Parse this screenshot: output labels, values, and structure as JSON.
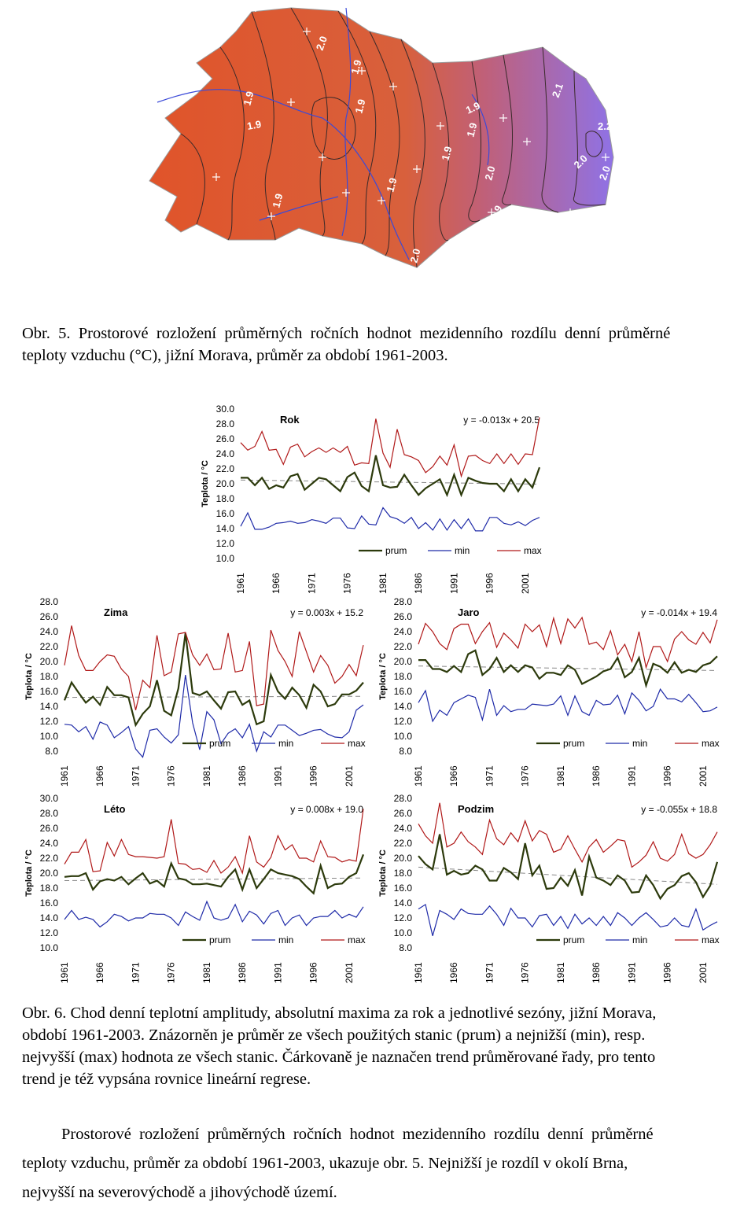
{
  "map": {
    "contour_labels": [
      "2.0",
      "1.9",
      "1.9",
      "1.9",
      "1.9",
      "1.9",
      "2.1",
      "1.9",
      "2.2",
      "1.9",
      "1.9",
      "2.0",
      "2.0",
      "2.1",
      "2.0",
      "1.9",
      "2.0",
      "1.9",
      "2.0"
    ],
    "colors": {
      "warm": "#e0542a",
      "mid": "#d8603c",
      "cool": "#8f72e6",
      "contour": "#3a2a2a",
      "river": "#3b4ad8",
      "border": "#b8b8c8",
      "station": "#ffffff"
    }
  },
  "caption5": {
    "line1": "Obr.  5.  Prostorové  rozložení  průměrných  ročních  hodnot  mezidenního  rozdílu  denní  průměrné",
    "line2": "teploty vzduchu (°C), jižní Morava, průměr za období 1961-2003."
  },
  "caption6": {
    "line1": "Obr. 6. Chod denní teplotní amplitudy, absolutní maxima za rok a jednotlivé sezóny, jižní Morava,",
    "line2": "období 1961-2003. Znázorněn je průměr ze všech použitých stanic (prum) a nejnižší (min), resp.",
    "line3": "nejvyšší (max) hodnota ze všech stanic. Čárkovaně je naznačen trend průměrované řady, pro tento",
    "line4": "trend je též vypsána rovnice lineární regrese."
  },
  "body_text": {
    "line1": "Prostorové  rozložení  průměrných  ročních  hodnot  mezidenního  rozdílu  denní  průměrné",
    "line2": "teploty vzduchu, průměr za období 1961-2003, ukazuje obr. 5. Nejnižší je rozdíl v okolí Brna,",
    "line3": "nejvyšší na severovýchodě a jihovýchodě území."
  },
  "chart_data": [
    {
      "type": "line",
      "title": "Rok",
      "ylabel": "Teplota / °C",
      "equation": "y = -0.013x + 20.5",
      "ylim": [
        10,
        30
      ],
      "yticks": [
        "30.0",
        "28.0",
        "26.0",
        "24.0",
        "22.0",
        "20.0",
        "18.0",
        "16.0",
        "14.0",
        "12.0",
        "10.0"
      ],
      "xticks": [
        "1961",
        "1966",
        "1971",
        "1976",
        "1981",
        "1986",
        "1991",
        "1996",
        "2001"
      ],
      "legend": [
        "prum",
        "min",
        "max"
      ],
      "trend": [
        20.5,
        19.95
      ],
      "series": [
        {
          "name": "prum",
          "color": "#2c3a0c",
          "values": [
            20.8,
            20.8,
            19.8,
            20.8,
            19.3,
            19.8,
            19.5,
            21.0,
            21.3,
            19.2,
            20.0,
            20.8,
            20.6,
            19.8,
            19.0,
            20.9,
            21.5,
            19.7,
            19.0,
            23.8,
            19.8,
            19.5,
            19.6,
            21.2,
            19.8,
            18.5,
            19.4,
            20.0,
            20.6,
            18.5,
            21.2,
            18.5,
            20.8,
            20.4,
            20.1,
            20.0,
            20.0,
            19.0,
            20.6,
            19.0,
            20.6,
            19.5,
            22.2
          ]
        },
        {
          "name": "min",
          "color": "#1e2aa8",
          "values": [
            14.3,
            16.1,
            13.9,
            13.9,
            14.2,
            14.7,
            14.8,
            15.0,
            14.7,
            14.8,
            15.2,
            15.0,
            14.7,
            15.4,
            15.4,
            14.1,
            14.0,
            15.7,
            14.6,
            14.5,
            16.8,
            15.6,
            15.3,
            14.7,
            15.5,
            14.0,
            14.8,
            13.8,
            15.3,
            13.8,
            15.2,
            14.0,
            15.3,
            13.7,
            13.7,
            15.5,
            15.5,
            14.7,
            14.5,
            14.9,
            14.4,
            15.1,
            15.5
          ]
        },
        {
          "name": "max",
          "color": "#b01818",
          "values": [
            25.5,
            24.5,
            25.0,
            27.0,
            24.5,
            24.6,
            22.6,
            24.9,
            25.3,
            23.6,
            24.3,
            24.8,
            24.2,
            24.8,
            24.2,
            25.0,
            22.5,
            22.8,
            22.7,
            28.7,
            24.1,
            22.2,
            27.3,
            23.9,
            23.6,
            23.1,
            21.5,
            22.3,
            23.7,
            22.5,
            25.2,
            21.0,
            23.7,
            23.8,
            23.1,
            22.7,
            24.0,
            22.7,
            24.0,
            22.6,
            24.0,
            23.9,
            28.9
          ]
        }
      ]
    },
    {
      "type": "line",
      "title": "Zima",
      "ylabel": "Teplota / °C",
      "equation": "y = 0.003x + 15.2",
      "ylim": [
        8,
        28
      ],
      "yticks": [
        "28.0",
        "26.0",
        "24.0",
        "22.0",
        "20.0",
        "18.0",
        "16.0",
        "14.0",
        "12.0",
        "10.0",
        "8.0"
      ],
      "xticks": [
        "1961",
        "1966",
        "1971",
        "1976",
        "1981",
        "1986",
        "1991",
        "1996",
        "2001"
      ],
      "legend": [
        "prum",
        "min",
        "max"
      ],
      "trend": [
        15.2,
        15.35
      ],
      "series": [
        {
          "name": "prum",
          "color": "#2c3a0c",
          "values": [
            14.8,
            17.2,
            15.8,
            14.5,
            15.3,
            14.2,
            16.6,
            15.5,
            15.5,
            15.2,
            11.5,
            13.0,
            14.0,
            17.5,
            13.4,
            12.8,
            16.4,
            23.8,
            15.8,
            15.5,
            16.0,
            14.8,
            13.7,
            15.9,
            16.0,
            14.2,
            14.8,
            11.6,
            12.0,
            18.2,
            16.0,
            15.0,
            16.5,
            15.5,
            13.8,
            16.9,
            16.0,
            14.0,
            14.3,
            15.6,
            15.6,
            16.1,
            17.2
          ]
        },
        {
          "name": "min",
          "color": "#1e2aa8",
          "values": [
            11.6,
            11.5,
            10.6,
            11.3,
            9.6,
            11.9,
            11.5,
            9.8,
            10.5,
            11.3,
            8.3,
            7.2,
            10.8,
            11.0,
            9.9,
            9.1,
            10.2,
            18.2,
            11.8,
            8.2,
            13.3,
            12.2,
            9.0,
            10.4,
            11.0,
            9.8,
            11.6,
            8.0,
            10.6,
            9.9,
            11.5,
            11.5,
            10.8,
            10.1,
            10.4,
            10.8,
            10.9,
            10.3,
            9.9,
            9.8,
            10.6,
            13.5,
            14.2
          ]
        },
        {
          "name": "max",
          "color": "#b01818",
          "values": [
            19.5,
            24.8,
            20.8,
            18.8,
            18.8,
            20.0,
            20.9,
            20.7,
            19.0,
            18.0,
            13.5,
            17.5,
            16.5,
            23.5,
            18.1,
            18.6,
            23.7,
            23.9,
            20.9,
            19.5,
            21.0,
            18.9,
            19.0,
            23.8,
            18.6,
            18.8,
            22.7,
            14.1,
            14.3,
            24.2,
            21.5,
            20.0,
            18.0,
            24.0,
            21.3,
            18.6,
            20.8,
            19.5,
            17.1,
            18.0,
            19.6,
            18.1,
            22.2
          ]
        }
      ]
    },
    {
      "type": "line",
      "title": "Jaro",
      "ylabel": "Teplota / °C",
      "equation": "y = -0.014x + 19.4",
      "ylim": [
        8,
        28
      ],
      "yticks": [
        "28.0",
        "26.0",
        "24.0",
        "22.0",
        "20.0",
        "18.0",
        "16.0",
        "14.0",
        "12.0",
        "10.0",
        "8.0"
      ],
      "xticks": [
        "1961",
        "1966",
        "1971",
        "1976",
        "1981",
        "1986",
        "1991",
        "1996",
        "2001"
      ],
      "legend": [
        "prum",
        "min",
        "max"
      ],
      "trend": [
        19.4,
        18.8
      ],
      "series": [
        {
          "name": "prum",
          "color": "#2c3a0c",
          "values": [
            20.2,
            20.2,
            19.0,
            19.0,
            18.6,
            19.4,
            18.6,
            21.0,
            21.5,
            18.2,
            19.0,
            20.5,
            18.6,
            19.5,
            18.6,
            19.5,
            19.2,
            17.7,
            18.5,
            18.5,
            18.2,
            19.5,
            18.9,
            17.0,
            17.5,
            18.0,
            18.7,
            19.0,
            20.5,
            17.9,
            18.6,
            20.5,
            16.8,
            19.7,
            19.3,
            18.5,
            19.9,
            18.5,
            18.9,
            18.6,
            19.5,
            19.8,
            20.7
          ]
        },
        {
          "name": "min",
          "color": "#1e2aa8",
          "values": [
            14.5,
            16.1,
            12.0,
            13.5,
            12.8,
            14.5,
            15.0,
            15.5,
            15.2,
            12.2,
            16.3,
            12.8,
            14.1,
            13.3,
            13.6,
            13.6,
            14.3,
            14.2,
            14.1,
            14.3,
            15.4,
            12.8,
            15.4,
            13.3,
            12.8,
            14.8,
            14.2,
            14.3,
            15.5,
            13.0,
            15.8,
            14.8,
            13.4,
            14.0,
            16.3,
            15.0,
            15.0,
            14.6,
            15.6,
            14.5,
            13.3,
            13.4,
            13.9
          ]
        },
        {
          "name": "max",
          "color": "#b01818",
          "values": [
            22.3,
            25.1,
            24.0,
            22.4,
            21.6,
            24.4,
            25.0,
            25.0,
            22.4,
            24.0,
            25.2,
            21.9,
            23.8,
            22.9,
            21.8,
            25.0,
            24.0,
            24.9,
            22.0,
            25.8,
            22.4,
            25.7,
            24.5,
            25.9,
            22.3,
            22.6,
            21.6,
            24.1,
            20.9,
            22.3,
            20.0,
            24.0,
            19.2,
            22.0,
            22.0,
            20.0,
            23.0,
            24.0,
            22.9,
            22.3,
            23.9,
            22.5,
            25.6
          ]
        }
      ]
    },
    {
      "type": "line",
      "title": "Léto",
      "ylabel": "Teplota / °C",
      "equation": "y = 0.008x + 19.0",
      "ylim": [
        10,
        30
      ],
      "yticks": [
        "30.0",
        "28.0",
        "26.0",
        "24.0",
        "22.0",
        "20.0",
        "18.0",
        "16.0",
        "14.0",
        "12.0",
        "10.0"
      ],
      "xticks": [
        "1961",
        "1966",
        "1971",
        "1976",
        "1981",
        "1986",
        "1991",
        "1996",
        "2001"
      ],
      "legend": [
        "prum",
        "min",
        "max"
      ],
      "trend": [
        19.0,
        19.35
      ],
      "series": [
        {
          "name": "prum",
          "color": "#2c3a0c",
          "values": [
            19.5,
            19.6,
            19.6,
            20.0,
            17.8,
            18.9,
            19.2,
            19.0,
            19.5,
            18.5,
            19.3,
            20.0,
            18.6,
            19.0,
            18.2,
            21.3,
            19.3,
            19.1,
            18.5,
            18.5,
            18.6,
            18.4,
            18.2,
            19.5,
            20.5,
            17.8,
            20.5,
            18.0,
            19.2,
            20.5,
            20.0,
            19.8,
            19.6,
            19.2,
            18.2,
            17.3,
            21.0,
            18.0,
            18.5,
            18.6,
            19.5,
            20.0,
            22.5
          ]
        },
        {
          "name": "min",
          "color": "#1e2aa8",
          "values": [
            13.8,
            15.0,
            13.8,
            14.1,
            13.8,
            12.8,
            13.5,
            14.5,
            14.2,
            13.6,
            14.0,
            14.0,
            14.6,
            14.5,
            14.5,
            14.0,
            13.0,
            14.8,
            14.2,
            13.7,
            16.2,
            14.0,
            13.7,
            14.0,
            15.8,
            13.5,
            14.9,
            14.4,
            13.2,
            14.6,
            15.0,
            13.0,
            14.0,
            14.4,
            13.0,
            14.0,
            14.2,
            14.2,
            15.0,
            14.0,
            14.5,
            14.1,
            15.5
          ]
        },
        {
          "name": "max",
          "color": "#b01818",
          "values": [
            21.2,
            22.8,
            22.8,
            24.5,
            20.2,
            20.3,
            24.1,
            22.3,
            24.5,
            22.5,
            22.2,
            22.2,
            22.1,
            22.0,
            22.2,
            27.2,
            21.3,
            21.2,
            20.5,
            20.6,
            20.1,
            21.7,
            20.0,
            20.8,
            22.2,
            20.0,
            25.0,
            21.5,
            20.8,
            22.1,
            25.0,
            23.1,
            23.8,
            22.0,
            22.0,
            21.5,
            24.3,
            22.2,
            22.1,
            21.5,
            21.8,
            21.6,
            28.6
          ]
        }
      ]
    },
    {
      "type": "line",
      "title": "Podzim",
      "ylabel": "Teplota / °C",
      "equation": "y = -0.055x + 18.8",
      "ylim": [
        8,
        28
      ],
      "yticks": [
        "28.0",
        "26.0",
        "24.0",
        "22.0",
        "20.0",
        "18.0",
        "16.0",
        "14.0",
        "12.0",
        "10.0",
        "8.0"
      ],
      "xticks": [
        "1961",
        "1966",
        "1971",
        "1976",
        "1981",
        "1986",
        "1991",
        "1996",
        "2001"
      ],
      "legend": [
        "prum",
        "min",
        "max"
      ],
      "trend": [
        18.8,
        16.5
      ],
      "series": [
        {
          "name": "prum",
          "color": "#2c3a0c",
          "values": [
            20.3,
            19.2,
            18.5,
            23.2,
            17.8,
            18.3,
            17.8,
            18.0,
            19.0,
            18.5,
            17.0,
            17.0,
            18.7,
            18.1,
            17.2,
            22.0,
            17.7,
            19.0,
            15.9,
            16.0,
            17.4,
            16.3,
            18.4,
            15.0,
            20.2,
            17.4,
            17.0,
            16.4,
            17.7,
            17.0,
            15.4,
            15.5,
            17.7,
            16.4,
            14.6,
            15.9,
            16.4,
            17.6,
            18.0,
            16.8,
            14.8,
            16.3,
            19.5
          ]
        },
        {
          "name": "min",
          "color": "#1e2aa8",
          "values": [
            13.2,
            13.8,
            9.6,
            13.0,
            12.5,
            11.8,
            13.2,
            12.6,
            12.5,
            12.5,
            13.6,
            12.5,
            11.0,
            13.3,
            12.0,
            12.0,
            10.8,
            12.3,
            12.5,
            11.0,
            12.2,
            10.6,
            12.5,
            11.2,
            12.0,
            11.0,
            12.2,
            11.0,
            12.7,
            12.0,
            11.0,
            12.0,
            12.7,
            11.8,
            10.8,
            11.0,
            12.0,
            11.0,
            10.8,
            13.2,
            10.4,
            11.0,
            11.5
          ]
        },
        {
          "name": "max",
          "color": "#b01818",
          "values": [
            24.6,
            23.0,
            22.0,
            27.4,
            21.5,
            22.0,
            23.5,
            22.2,
            21.5,
            20.5,
            25.1,
            22.6,
            21.8,
            23.4,
            22.2,
            25.0,
            22.3,
            23.7,
            23.2,
            20.8,
            21.2,
            23.0,
            21.2,
            19.5,
            21.5,
            22.5,
            20.8,
            21.6,
            22.5,
            22.3,
            18.8,
            19.5,
            20.4,
            22.2,
            20.0,
            19.6,
            20.5,
            23.2,
            20.6,
            20.0,
            20.5,
            21.8,
            23.5
          ]
        }
      ]
    }
  ]
}
